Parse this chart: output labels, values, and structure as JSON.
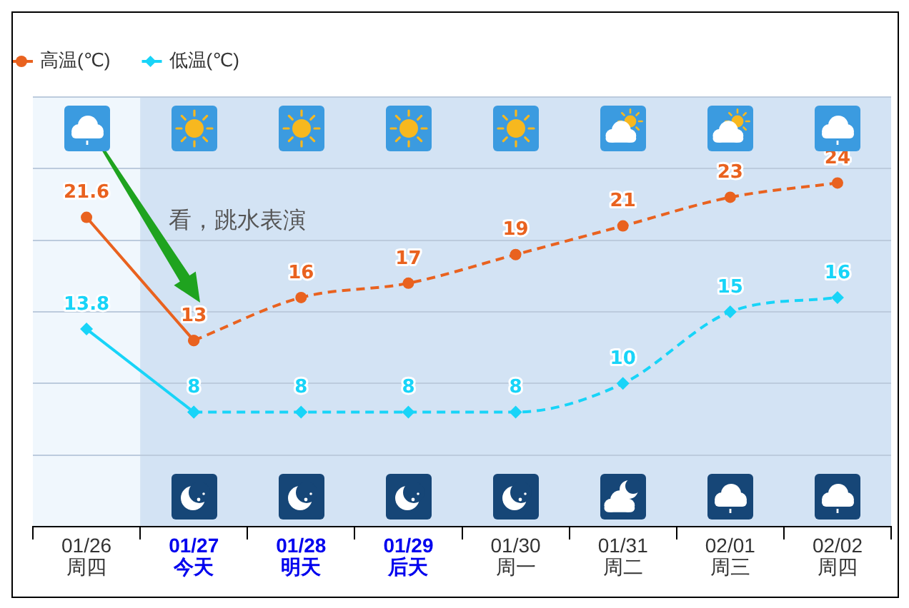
{
  "chart_data": {
    "type": "line",
    "categories": [
      "01/26\n周四",
      "01/27\n今天",
      "01/28\n明天",
      "01/29\n后天",
      "01/30\n周一",
      "01/31\n周二",
      "02/01\n周三",
      "02/02\n周四"
    ],
    "series": [
      {
        "name": "高温(℃)",
        "color": "#e9621f",
        "values": [
          21.6,
          13,
          null,
          null,
          null,
          null,
          null,
          null
        ],
        "value_labels": [
          "21.6",
          "13",
          null,
          null,
          null,
          null,
          null,
          null
        ],
        "marker": "circle",
        "line_style": "solid"
      },
      {
        "color": "#e9621f",
        "values": [
          null,
          13,
          16,
          17,
          19,
          21,
          23,
          24
        ],
        "value_labels": [
          null,
          null,
          "16",
          "17",
          "19",
          "21",
          "23",
          "24"
        ],
        "marker": "circle",
        "line_style": "dashed"
      },
      {
        "name": "低温(℃)",
        "color": "#18d4f8",
        "values": [
          13.8,
          8,
          null,
          null,
          null,
          null,
          null,
          null
        ],
        "value_labels": [
          "13.8",
          "8",
          null,
          null,
          null,
          null,
          null,
          null
        ],
        "marker": "diamond",
        "line_style": "solid"
      },
      {
        "color": "#18d4f8",
        "values": [
          null,
          8,
          8,
          8,
          8,
          10,
          15,
          16
        ],
        "value_labels": [
          null,
          null,
          "8",
          "8",
          "8",
          "10",
          "15",
          "16"
        ],
        "marker": "diamond",
        "line_style": "dashed"
      }
    ],
    "ylim": [
      0,
      30
    ],
    "yticks": [
      {
        "value": 0,
        "label": null
      },
      {
        "value": 5,
        "label": null
      },
      {
        "value": 10,
        "label": null
      },
      {
        "value": 15,
        "label": null
      },
      {
        "value": 20,
        "label": null
      },
      {
        "value": 25,
        "label": null
      },
      {
        "value": 30,
        "label": null
      }
    ],
    "grid": "y",
    "tick_labels": "x",
    "legend": "top left",
    "bands": [
      {
        "axis": "x",
        "from": "01/26\n周四",
        "to": "01/26\n周四",
        "color": "#f0f7fd"
      },
      {
        "axis": "x",
        "from": "01/27\n今天",
        "to": "02/02\n周四",
        "color": "#d3e3f4"
      }
    ],
    "annotations": [
      "看，跳水表演"
    ]
  }
}
